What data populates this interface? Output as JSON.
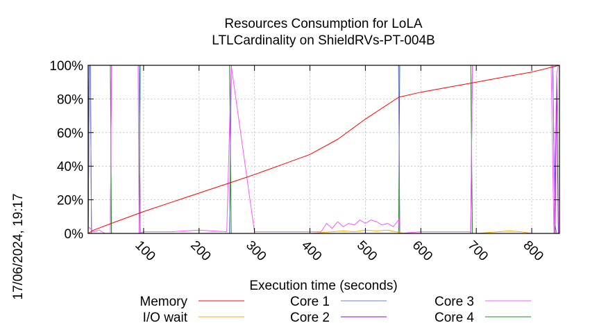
{
  "chart_data": {
    "type": "line",
    "title": "Resources Consumption for LoLA",
    "subtitle": "LTLCardinality on ShieldRVs-PT-004B",
    "xlabel": "Execution time (seconds)",
    "ylabel": "",
    "timestamp": "17/06/2024, 19:17",
    "xlim": [
      0,
      850
    ],
    "ylim": [
      0,
      100
    ],
    "x_ticks": [
      "100",
      "200",
      "300",
      "400",
      "500",
      "600",
      "700",
      "800"
    ],
    "y_ticks": [
      "0%",
      "20%",
      "40%",
      "60%",
      "80%",
      "100%"
    ],
    "colors": {
      "memory": "#ff0000",
      "io_wait": "#ffa500",
      "core1": "#6b7fd7",
      "core2": "#9400d3",
      "core3": "#ff55ff",
      "core4": "#228b22"
    },
    "series": [
      {
        "name": "Memory",
        "key": "memory",
        "x": [
          0,
          10,
          50,
          100,
          150,
          200,
          250,
          300,
          350,
          400,
          450,
          500,
          560,
          600,
          650,
          700,
          750,
          800,
          850
        ],
        "values": [
          0,
          2,
          7,
          13,
          18.5,
          24,
          29.5,
          35,
          41,
          47,
          56,
          68,
          81,
          84,
          87,
          90,
          93,
          96,
          100
        ]
      },
      {
        "name": "I/O wait",
        "key": "io_wait",
        "x": [
          0,
          100,
          200,
          300,
          400,
          440,
          460,
          480,
          500,
          520,
          540,
          555,
          570,
          600,
          700,
          740,
          760,
          780,
          800,
          850
        ],
        "values": [
          0,
          0,
          0,
          0,
          0,
          1,
          1.5,
          1,
          2,
          1.5,
          2,
          1,
          0,
          0,
          0,
          1,
          1.5,
          1,
          0,
          0
        ]
      },
      {
        "name": "Core 1",
        "key": "core1",
        "x": [
          0,
          2,
          4,
          6,
          40,
          42,
          44,
          90,
          92,
          94,
          255,
          258,
          261,
          262,
          264,
          266,
          560,
          562,
          564,
          690,
          693,
          696,
          835,
          838,
          842,
          845,
          848
        ],
        "values": [
          0,
          100,
          100,
          0,
          0,
          100,
          100,
          100,
          100,
          0,
          0,
          100,
          100,
          100,
          100,
          100,
          100,
          0,
          0,
          0,
          100,
          100,
          100,
          100,
          5,
          0,
          0
        ]
      },
      {
        "name": "Core 2",
        "key": "core2",
        "x": [
          0,
          2,
          4,
          6,
          40,
          42,
          44,
          90,
          92,
          94,
          255,
          258,
          261,
          560,
          562,
          564,
          690,
          693,
          696,
          835,
          838,
          842,
          845,
          848
        ],
        "values": [
          0,
          100,
          100,
          0,
          0,
          100,
          100,
          100,
          100,
          0,
          0,
          100,
          100,
          100,
          0,
          0,
          0,
          100,
          100,
          100,
          100,
          0,
          95,
          0
        ]
      },
      {
        "name": "Core 3",
        "key": "core3",
        "x": [
          0,
          10,
          20,
          30,
          40,
          42,
          90,
          92,
          100,
          150,
          200,
          250,
          258,
          300,
          350,
          400,
          420,
          430,
          440,
          450,
          460,
          470,
          480,
          490,
          500,
          510,
          520,
          530,
          540,
          550,
          560,
          562,
          600,
          650,
          690,
          693,
          760,
          770,
          780,
          790,
          800,
          835,
          840,
          845,
          848
        ],
        "values": [
          4,
          1,
          2,
          0,
          0,
          100,
          100,
          0,
          1,
          1,
          2,
          1,
          100,
          1,
          1,
          1,
          1,
          6,
          3,
          7,
          4,
          6,
          5,
          8,
          6,
          8,
          7,
          5,
          6,
          4,
          8,
          0,
          1,
          1,
          1,
          100,
          100,
          100,
          100,
          100,
          100,
          100,
          0,
          95,
          100
        ]
      },
      {
        "name": "Core 4",
        "key": "core4",
        "x": [
          0,
          2,
          4,
          6,
          40,
          42,
          44,
          90,
          92,
          94,
          255,
          258,
          261,
          560,
          562,
          564,
          690,
          693,
          696,
          835,
          838,
          842
        ],
        "values": [
          0,
          100,
          100,
          100,
          100,
          0,
          0,
          0,
          0,
          100,
          100,
          0,
          0,
          0,
          100,
          100,
          100,
          0,
          0,
          0,
          0,
          0
        ]
      }
    ],
    "legend": {
      "placement": "bottom",
      "columns": 3
    }
  }
}
